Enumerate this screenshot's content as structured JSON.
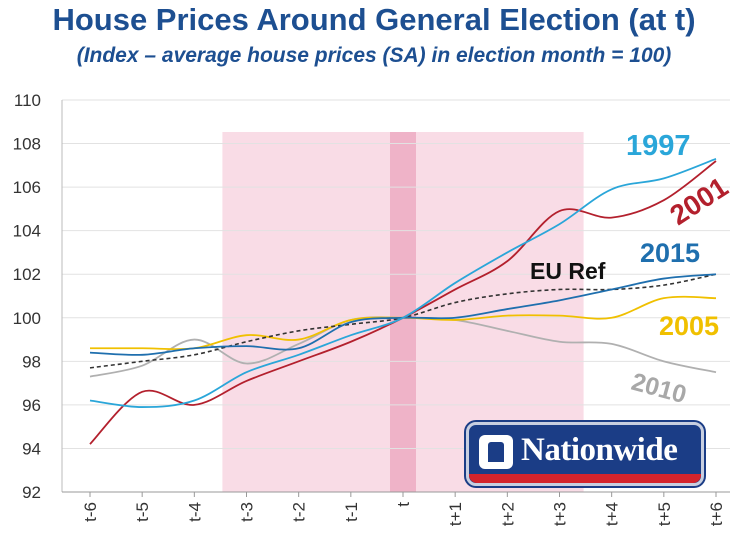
{
  "header": {
    "title": "House Prices Around General Election (at t)",
    "subtitle": "(Index – average house prices (SA) in election month = 100)"
  },
  "logo": {
    "text": "Nationwide"
  },
  "chart_data": {
    "type": "line",
    "categories": [
      "t-6",
      "t-5",
      "t-4",
      "t-3",
      "t-2",
      "t-1",
      "t",
      "t+1",
      "t+2",
      "t+3",
      "t+4",
      "t+5",
      "t+6"
    ],
    "ylim": [
      92,
      110
    ],
    "yticks": [
      92,
      94,
      96,
      98,
      100,
      102,
      104,
      106,
      108,
      110
    ],
    "grid": true,
    "shaded_ranges": [
      {
        "from": "t-3",
        "to": "t+3",
        "color": "#f9dce6"
      },
      {
        "from": "t",
        "to": "t",
        "color": "#efb3c8"
      }
    ],
    "series": [
      {
        "name": "1997",
        "color": "#2aa6d9",
        "style": "solid",
        "values": [
          96.2,
          95.9,
          96.2,
          97.5,
          98.3,
          99.2,
          100.0,
          101.6,
          103.0,
          104.3,
          105.9,
          106.4,
          107.3
        ]
      },
      {
        "name": "2001",
        "color": "#b3202d",
        "style": "solid",
        "values": [
          94.2,
          96.6,
          96.0,
          97.1,
          98.0,
          98.9,
          100.0,
          101.3,
          102.6,
          104.9,
          104.6,
          105.4,
          107.2
        ]
      },
      {
        "name": "2015",
        "color": "#1f6fae",
        "style": "solid",
        "values": [
          98.4,
          98.3,
          98.6,
          98.7,
          98.6,
          99.8,
          100.0,
          100.0,
          100.4,
          100.8,
          101.3,
          101.8,
          102.0
        ]
      },
      {
        "name": "EU Ref",
        "color": "#333333",
        "style": "dashed",
        "values": [
          97.7,
          98.0,
          98.3,
          98.9,
          99.4,
          99.7,
          100.0,
          100.7,
          101.1,
          101.3,
          101.3,
          101.5,
          102.0
        ]
      },
      {
        "name": "2005",
        "color": "#f0c000",
        "style": "solid",
        "values": [
          98.6,
          98.6,
          98.6,
          99.2,
          99.0,
          99.9,
          100.0,
          99.9,
          100.1,
          100.1,
          100.0,
          100.9,
          100.9
        ]
      },
      {
        "name": "2010",
        "color": "#b0b0b0",
        "style": "solid",
        "values": [
          97.3,
          97.8,
          99.0,
          97.9,
          98.8,
          99.9,
          100.0,
          99.9,
          99.4,
          98.9,
          98.8,
          98.0,
          97.5
        ]
      }
    ]
  }
}
